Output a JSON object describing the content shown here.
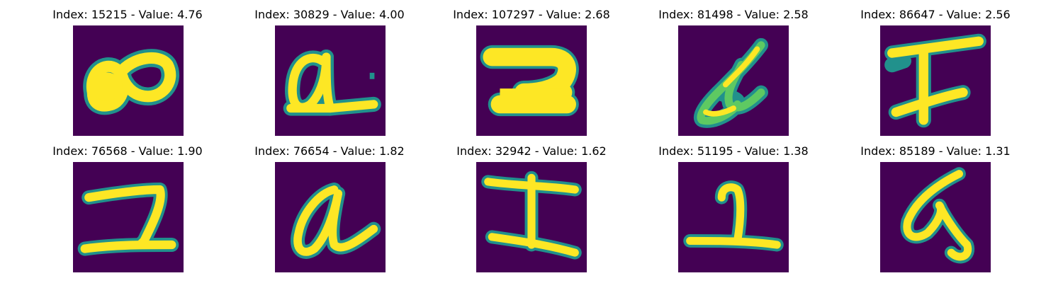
{
  "colors": {
    "background": "#440154",
    "stroke_mid": "#21918c",
    "stroke_core": "#fde725",
    "stroke_edge": "#5ec962"
  },
  "panels": [
    {
      "title": "Index: 15215 - Value: 4.76",
      "glyph": "eight-infinity"
    },
    {
      "title": "Index: 30829 - Value: 4.00",
      "glyph": "script-a-underline"
    },
    {
      "title": "Index: 107297 - Value: 2.68",
      "glyph": "bold-two"
    },
    {
      "title": "Index: 81498 - Value: 2.58",
      "glyph": "slanted-scribble"
    },
    {
      "title": "Index: 86647 - Value: 2.56",
      "glyph": "f-like"
    },
    {
      "title": "Index: 76568 - Value: 1.90",
      "glyph": "two"
    },
    {
      "title": "Index: 76654 - Value: 1.82",
      "glyph": "script-a"
    },
    {
      "title": "Index: 32942 - Value: 1.62",
      "glyph": "i-beam"
    },
    {
      "title": "Index: 51195 - Value: 1.38",
      "glyph": "small-two"
    },
    {
      "title": "Index: 85189 - Value: 1.31",
      "glyph": "six-loop"
    }
  ]
}
